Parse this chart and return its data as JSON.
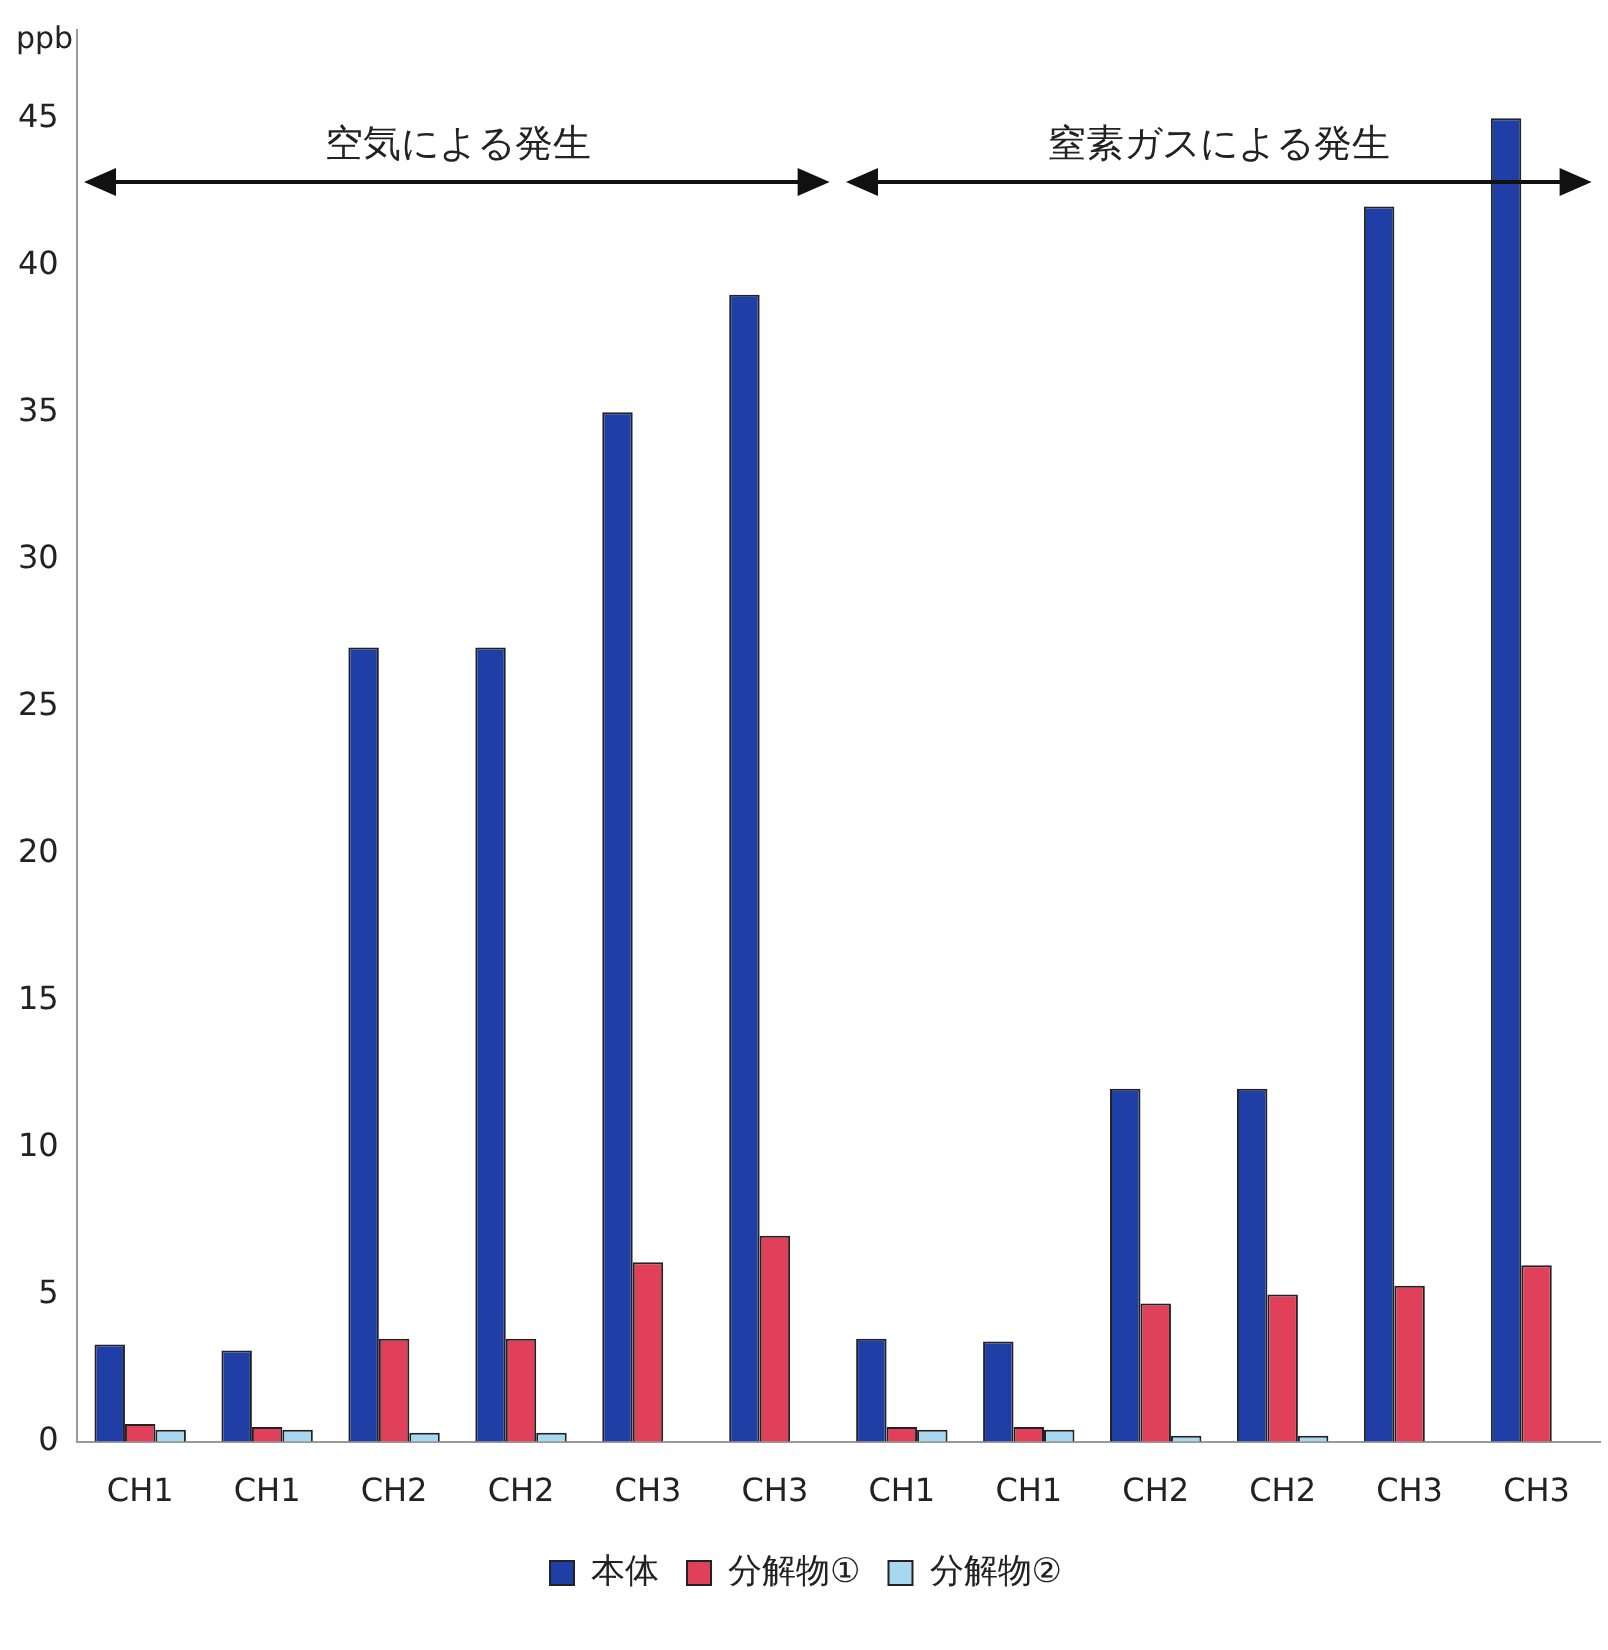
{
  "chart_data": {
    "type": "bar",
    "ylabel": "ppb",
    "categories": [
      "CH1",
      "CH1",
      "CH2",
      "CH2",
      "CH3",
      "CH3",
      "CH1",
      "CH1",
      "CH2",
      "CH2",
      "CH3",
      "CH3"
    ],
    "series": [
      {
        "name": "本体",
        "color": "#1f3fa6",
        "values": [
          3.3,
          3.1,
          27,
          27,
          35,
          39,
          3.5,
          3.4,
          12,
          12,
          42,
          45
        ]
      },
      {
        "name": "分解物①",
        "color": "#e0405a",
        "values": [
          0.6,
          0.5,
          3.5,
          3.5,
          6.1,
          7,
          0.5,
          0.5,
          4.7,
          5,
          5.3,
          6
        ]
      },
      {
        "name": "分解物②",
        "color": "#a8d8f0",
        "values": [
          0.4,
          0.4,
          0.3,
          0.3,
          0,
          0,
          0.4,
          0.4,
          0.2,
          0.2,
          0,
          0
        ]
      }
    ],
    "ylim": [
      0,
      48
    ],
    "yticks": [
      0,
      5,
      10,
      15,
      20,
      25,
      30,
      35,
      40,
      45
    ],
    "grid": false,
    "legend": "bottom",
    "annotations": [
      "空気による発生",
      "窒素ガスによる発生"
    ]
  }
}
